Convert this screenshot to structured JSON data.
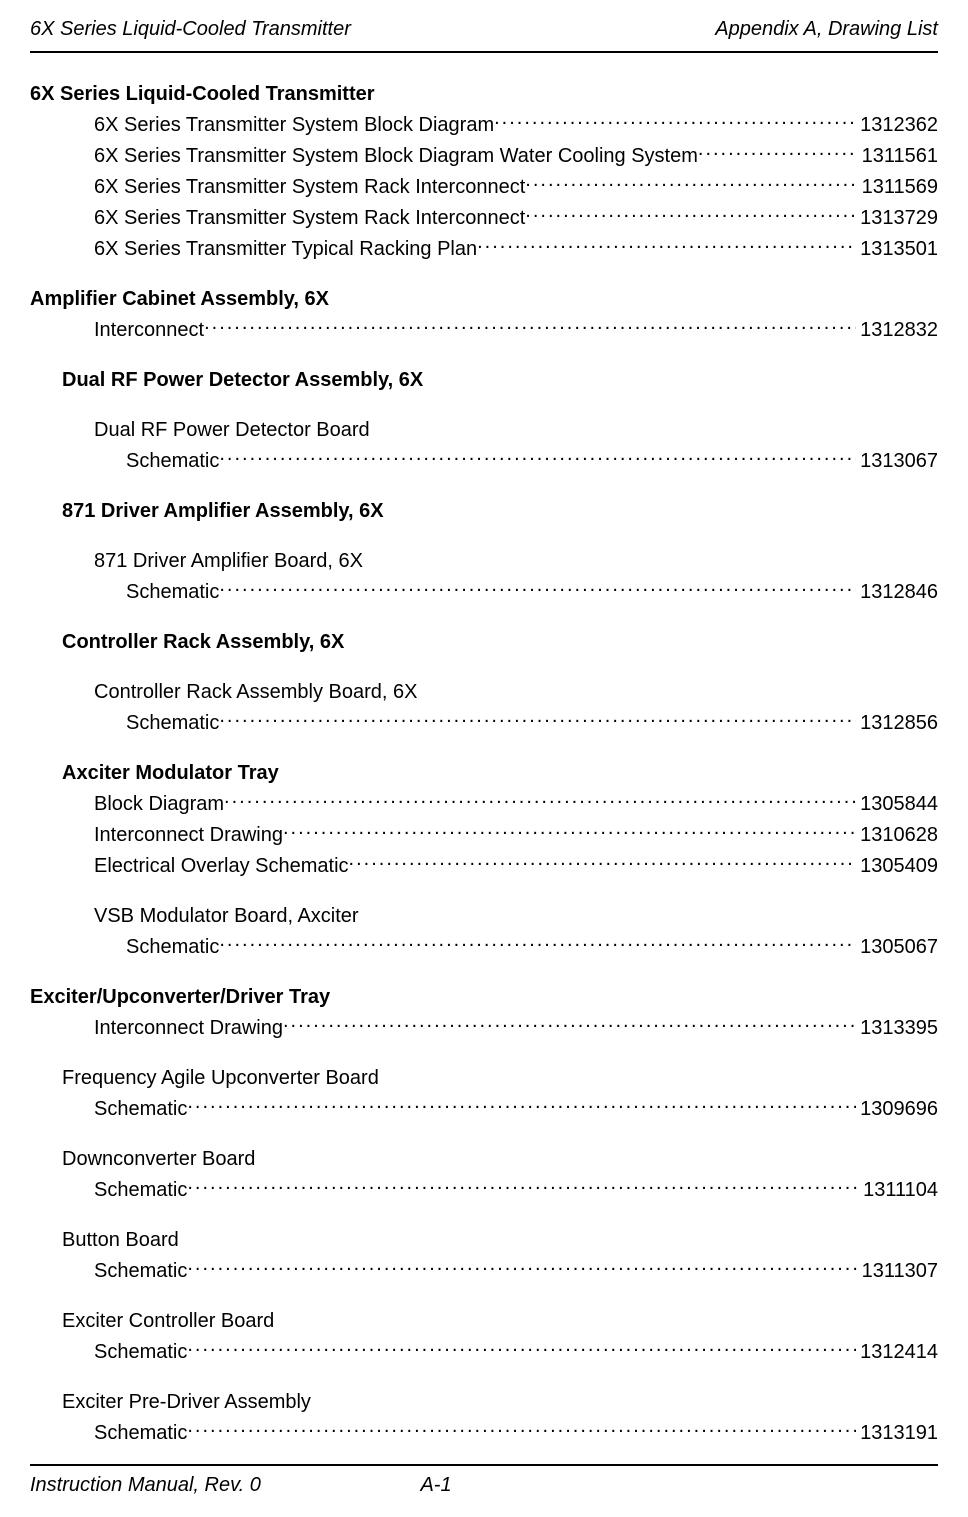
{
  "header": {
    "left": "6X Series Liquid-Cooled Transmitter",
    "right": "Appendix A, Drawing List"
  },
  "sections": {
    "s1": {
      "title": "6X Series Liquid-Cooled Transmitter",
      "items": [
        {
          "label": "6X Series Transmitter System Block Diagram ",
          "num": "1312362"
        },
        {
          "label": "6X Series Transmitter System Block Diagram Water Cooling System",
          "num": "1311561"
        },
        {
          "label": "6X Series Transmitter System Rack Interconnect ",
          "num": "1311569"
        },
        {
          "label": "6X Series Transmitter System Rack Interconnect ",
          "num": "1313729"
        },
        {
          "label": "6X Series Transmitter Typical Racking Plan",
          "num": "1313501"
        }
      ]
    },
    "s2": {
      "title": "Amplifier Cabinet Assembly, 6X",
      "items": [
        {
          "label": "Interconnect",
          "num": "1312832"
        }
      ]
    },
    "s3": {
      "title": "Dual RF Power Detector Assembly, 6X",
      "sub": "Dual RF Power Detector Board",
      "items": [
        {
          "label": "Schematic ",
          "num": "1313067"
        }
      ]
    },
    "s4": {
      "title": "871 Driver Amplifier Assembly, 6X",
      "sub": "871 Driver Amplifier Board, 6X",
      "items": [
        {
          "label": "Schematic ",
          "num": "1312846"
        }
      ]
    },
    "s5": {
      "title": "Controller Rack Assembly, 6X",
      "sub": "Controller Rack Assembly Board, 6X",
      "items": [
        {
          "label": "Schematic ",
          "num": "1312856"
        }
      ]
    },
    "s6": {
      "title": "Axciter Modulator Tray",
      "items": [
        {
          "label": "Block Diagram ",
          "num": "1305844"
        },
        {
          "label": "Interconnect Drawing ",
          "num": "1310628"
        },
        {
          "label": "Electrical Overlay Schematic",
          "num": "1305409"
        }
      ],
      "sub": "VSB Modulator Board, Axciter",
      "subitems": [
        {
          "label": "Schematic ",
          "num": "1305067"
        }
      ]
    },
    "s7": {
      "title": "Exciter/Upconverter/Driver Tray",
      "items": [
        {
          "label": "Interconnect Drawing ",
          "num": "1313395"
        }
      ],
      "groups": [
        {
          "sub": "Frequency Agile Upconverter Board",
          "label": "Schematic",
          "num": "1309696"
        },
        {
          "sub": "Downconverter Board",
          "label": "Schematic",
          "num": "1311104"
        },
        {
          "sub": "Button Board",
          "label": "Schematic",
          "num": "1311307"
        },
        {
          "sub": "Exciter Controller Board",
          "label": "Schematic",
          "num": "1312414"
        },
        {
          "sub": "Exciter Pre-Driver Assembly",
          "label": "Schematic",
          "num": "1313191"
        }
      ]
    }
  },
  "footer": {
    "left": "Instruction Manual, Rev. 0",
    "center": "A-1"
  }
}
